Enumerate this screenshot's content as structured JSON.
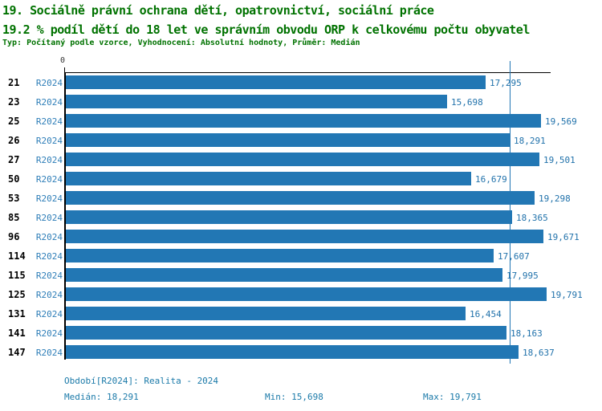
{
  "header": {
    "title": "19. Sociálně právní ochrana dětí, opatrovnictví, sociální práce",
    "subtitle": "19.2 % podíl dětí do 18 let ve správním obvodu ORP k celkovému počtu obyvatel",
    "meta": "Typ: Počítaný podle vzorce, Vyhodnocení: Absolutní hodnoty, Průměr: Medián"
  },
  "chart_data": {
    "type": "bar",
    "orientation": "horizontal",
    "title": "19.2 % podíl dětí do 18 let ve správním obvodu ORP k celkovému počtu obyvatel",
    "categories": [
      "21",
      "23",
      "25",
      "26",
      "27",
      "50",
      "53",
      "85",
      "96",
      "114",
      "115",
      "125",
      "131",
      "141",
      "147"
    ],
    "series": [
      {
        "name": "R2024",
        "values": [
          17295,
          15698,
          19569,
          18291,
          19501,
          16679,
          19298,
          18365,
          19671,
          17607,
          17995,
          19791,
          16454,
          18163,
          18637
        ],
        "value_labels": [
          "17,295",
          "15,698",
          "19,569",
          "18,291",
          "19,501",
          "16,679",
          "19,298",
          "18,365",
          "19,671",
          "17,607",
          "17,995",
          "19,791",
          "16,454",
          "18,163",
          "18,637"
        ]
      }
    ],
    "xlim": [
      0,
      20000
    ],
    "zero_tick_label": "0",
    "median_value": 18291,
    "bar_color": "#2277b4",
    "median_line_color": "#2277b4",
    "grid": false,
    "legend_position": "none"
  },
  "footer": {
    "period": "Období[R2024]: Realita - 2024",
    "median": "Medián: 18,291",
    "min": "Min: 15,698",
    "max": "Max: 19,791"
  }
}
